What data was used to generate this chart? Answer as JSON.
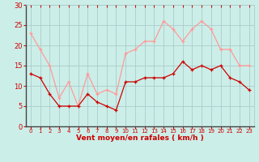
{
  "x": [
    0,
    1,
    2,
    3,
    4,
    5,
    6,
    7,
    8,
    9,
    10,
    11,
    12,
    13,
    14,
    15,
    16,
    17,
    18,
    19,
    20,
    21,
    22,
    23
  ],
  "y_mean": [
    13,
    12,
    8,
    5,
    5,
    5,
    8,
    6,
    5,
    4,
    11,
    11,
    12,
    12,
    12,
    13,
    16,
    14,
    15,
    14,
    15,
    12,
    11,
    9
  ],
  "y_gust": [
    23,
    19,
    15,
    7,
    11,
    5,
    13,
    8,
    9,
    8,
    18,
    19,
    21,
    21,
    26,
    24,
    21,
    24,
    26,
    24,
    19,
    19,
    15,
    15
  ],
  "background_color": "#cceee8",
  "grid_color": "#aacccc",
  "mean_color": "#cc0000",
  "gust_color": "#ff9999",
  "tick_color": "#cc0000",
  "label_color": "#cc0000",
  "spine_color": "#444444",
  "xlabel": "Vent moyen/en rafales ( km/h )",
  "ylim": [
    0,
    30
  ],
  "xlim": [
    -0.5,
    23.5
  ],
  "yticks": [
    0,
    5,
    10,
    15,
    20,
    25,
    30
  ]
}
